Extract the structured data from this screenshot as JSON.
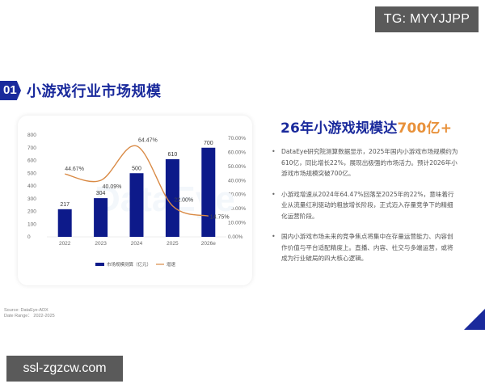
{
  "overlays": {
    "tg_badge": "TG: MYYJJPP",
    "bottom_watermark": "ssl-zgzcw.com"
  },
  "section": {
    "number": "01",
    "title": "小游戏行业市场规模"
  },
  "headline": {
    "prefix": "26年小游戏规模达",
    "accent": "700亿+"
  },
  "bullets": [
    "DataEye研究院测算数据显示，2025年国内小游戏市场规模约为610亿，同比增长22%，展现出极强的市场活力。预计2026年小游戏市场规模突破700亿。",
    "小游戏增速从2024年64.47%回落至2025年的22%，意味着行业从流量红利驱动的粗放增长阶段，正式迈入存量竞争下的精细化运营阶段。",
    "国内小游戏市场未来的竞争焦点将集中在存量运营能力、内容创作价值与平台适配精度上。直播、内容、社交与多端运营，或将成为行业破局的四大核心逻辑。"
  ],
  "source": {
    "line1": "Source: DataEye-ADX",
    "line2": "Date Range： 2022-2025"
  },
  "colors": {
    "brand_blue": "#1a2a9c",
    "bar_navy": "#0d1a8a",
    "growth_orange": "#d98a45",
    "accent_orange": "#e8913a"
  },
  "chart_data": {
    "type": "bar",
    "title": "",
    "categories": [
      "2022",
      "2023",
      "2024",
      "2025",
      "2026e"
    ],
    "series": [
      {
        "name": "市场规模测算（亿元）",
        "kind": "bar",
        "axis": "left",
        "values": [
          217,
          304,
          500,
          610,
          700
        ],
        "labels": [
          "217",
          "304",
          "500",
          "610",
          "700"
        ]
      },
      {
        "name": "增速",
        "kind": "line",
        "axis": "right",
        "values": [
          44.67,
          40.09,
          64.47,
          22.0,
          14.75
        ],
        "labels": [
          "44.67%",
          "40.09%",
          "64.47%",
          "22.00%",
          "14.75%"
        ]
      }
    ],
    "left_axis": {
      "ylim": [
        0,
        800
      ],
      "ticks": [
        "0",
        "100",
        "200",
        "300",
        "400",
        "500",
        "600",
        "700",
        "800"
      ]
    },
    "right_axis": {
      "ylim": [
        0,
        70
      ],
      "ticks": [
        "0.00%",
        "10.00%",
        "20.00%",
        "30.00%",
        "40.00%",
        "50.00%",
        "60.00%",
        "70.00%"
      ]
    },
    "xlabel": "",
    "ylabel": "",
    "grid": false,
    "legend_position": "bottom",
    "legend": [
      "市场规模测算（亿元）",
      "增速"
    ]
  }
}
